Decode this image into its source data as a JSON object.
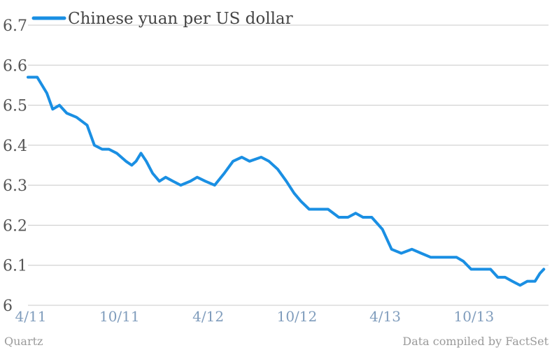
{
  "chart_data": {
    "type": "line",
    "x_axis": "date",
    "xlabel": "",
    "ylabel": "",
    "ylim": [
      6.0,
      6.7
    ],
    "yticks": [
      "6",
      "6.1",
      "6.2",
      "6.3",
      "6.4",
      "6.5",
      "6.6",
      "6.7"
    ],
    "xticks": [
      {
        "label": "4/11",
        "date": "2011-04-01"
      },
      {
        "label": "10/11",
        "date": "2011-10-01"
      },
      {
        "label": "4/12",
        "date": "2012-04-01"
      },
      {
        "label": "10/12",
        "date": "2012-10-01"
      },
      {
        "label": "4/13",
        "date": "2013-04-01"
      },
      {
        "label": "10/13",
        "date": "2013-10-01"
      }
    ],
    "grid": true,
    "legend_position": "top-left",
    "series": [
      {
        "name": "Chinese yuan per US dollar",
        "color": "#1a8fe3",
        "points": [
          [
            "2011-04-01",
            6.57
          ],
          [
            "2011-04-20",
            6.57
          ],
          [
            "2011-05-10",
            6.53
          ],
          [
            "2011-05-22",
            6.49
          ],
          [
            "2011-06-05",
            6.5
          ],
          [
            "2011-06-20",
            6.48
          ],
          [
            "2011-07-10",
            6.47
          ],
          [
            "2011-08-01",
            6.45
          ],
          [
            "2011-08-16",
            6.4
          ],
          [
            "2011-09-01",
            6.39
          ],
          [
            "2011-09-15",
            6.39
          ],
          [
            "2011-10-01",
            6.38
          ],
          [
            "2011-10-20",
            6.36
          ],
          [
            "2011-11-01",
            6.35
          ],
          [
            "2011-11-10",
            6.36
          ],
          [
            "2011-11-20",
            6.38
          ],
          [
            "2011-12-01",
            6.36
          ],
          [
            "2011-12-14",
            6.33
          ],
          [
            "2011-12-28",
            6.31
          ],
          [
            "2012-01-10",
            6.32
          ],
          [
            "2012-01-25",
            6.31
          ],
          [
            "2012-02-10",
            6.3
          ],
          [
            "2012-03-01",
            6.31
          ],
          [
            "2012-03-15",
            6.32
          ],
          [
            "2012-04-01",
            6.31
          ],
          [
            "2012-04-20",
            6.3
          ],
          [
            "2012-05-10",
            6.33
          ],
          [
            "2012-05-28",
            6.36
          ],
          [
            "2012-06-15",
            6.37
          ],
          [
            "2012-07-01",
            6.36
          ],
          [
            "2012-07-25",
            6.37
          ],
          [
            "2012-08-10",
            6.36
          ],
          [
            "2012-08-28",
            6.34
          ],
          [
            "2012-09-15",
            6.31
          ],
          [
            "2012-10-01",
            6.28
          ],
          [
            "2012-10-15",
            6.26
          ],
          [
            "2012-11-01",
            6.24
          ],
          [
            "2012-11-20",
            6.24
          ],
          [
            "2012-12-10",
            6.24
          ],
          [
            "2013-01-01",
            6.22
          ],
          [
            "2013-01-20",
            6.22
          ],
          [
            "2013-02-05",
            6.23
          ],
          [
            "2013-02-20",
            6.22
          ],
          [
            "2013-03-10",
            6.22
          ],
          [
            "2013-04-01",
            6.19
          ],
          [
            "2013-04-20",
            6.14
          ],
          [
            "2013-05-10",
            6.13
          ],
          [
            "2013-06-01",
            6.14
          ],
          [
            "2013-06-20",
            6.13
          ],
          [
            "2013-07-10",
            6.12
          ],
          [
            "2013-08-01",
            6.12
          ],
          [
            "2013-09-01",
            6.12
          ],
          [
            "2013-09-15",
            6.11
          ],
          [
            "2013-10-01",
            6.09
          ],
          [
            "2013-10-25",
            6.09
          ],
          [
            "2013-11-10",
            6.09
          ],
          [
            "2013-11-25",
            6.07
          ],
          [
            "2013-12-10",
            6.07
          ],
          [
            "2013-12-25",
            6.06
          ],
          [
            "2014-01-10",
            6.05
          ],
          [
            "2014-01-25",
            6.06
          ],
          [
            "2014-02-10",
            6.06
          ],
          [
            "2014-02-20",
            6.08
          ],
          [
            "2014-02-28",
            6.09
          ]
        ]
      }
    ]
  },
  "footer": {
    "left": "Quartz",
    "right": "Data compiled by FactSet"
  }
}
